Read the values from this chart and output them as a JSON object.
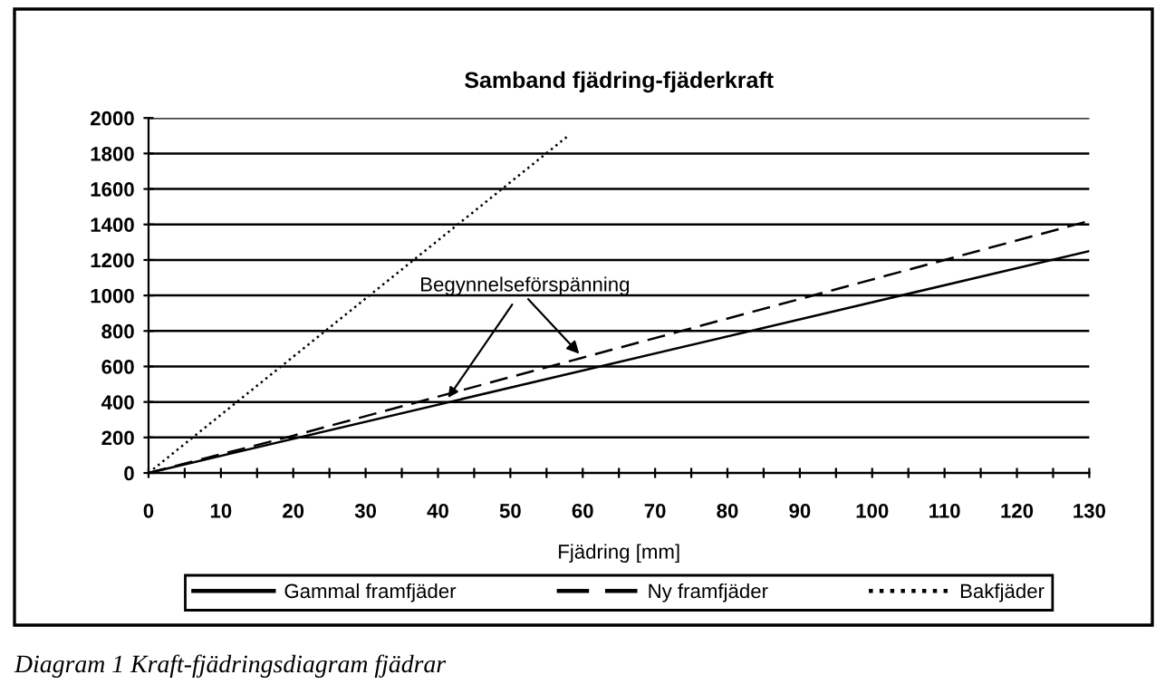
{
  "chart_data": {
    "type": "line",
    "title": "Samband fjädring-fjäderkraft",
    "xlabel": "Fjädring [mm]",
    "xlim": [
      0,
      130
    ],
    "ylim": [
      0,
      2000
    ],
    "xticks": [
      0,
      {
        "value": 5,
        "label": null
      },
      10,
      {
        "value": 15,
        "label": null
      },
      20,
      {
        "value": 25,
        "label": null
      },
      30,
      {
        "value": 35,
        "label": null
      },
      40,
      {
        "value": 45,
        "label": null
      },
      50,
      {
        "value": 55,
        "label": null
      },
      60,
      {
        "value": 65,
        "label": null
      },
      70,
      {
        "value": 75,
        "label": null
      },
      80,
      {
        "value": 85,
        "label": null
      },
      90,
      {
        "value": 95,
        "label": null
      },
      100,
      {
        "value": 105,
        "label": null
      },
      110,
      {
        "value": 115,
        "label": null
      },
      120,
      {
        "value": 125,
        "label": null
      },
      130
    ],
    "yticks": [
      0,
      200,
      400,
      600,
      800,
      1000,
      1200,
      1400,
      1600,
      1800,
      2000
    ],
    "grid": "y",
    "legend": "bottom",
    "series": [
      {
        "name": "Gammal framfjäder",
        "color": "#000000",
        "line_style": "solid",
        "x": [
          0,
          130
        ],
        "values": [
          0,
          1250
        ]
      },
      {
        "name": "Ny framfjäder",
        "color": "#000000",
        "line_style": "dashed",
        "x": [
          0,
          20,
          60,
          130
        ],
        "values": [
          0,
          210,
          650,
          1420
        ]
      },
      {
        "name": "Bakfjäder",
        "color": "#000000",
        "line_style": "dotted",
        "x": [
          0,
          58
        ],
        "values": [
          0,
          1900
        ]
      }
    ],
    "annotations": [
      {
        "text": "Begynnelseförspänning",
        "x": 41,
        "y": 400
      },
      "Diagram 1 Kraft-fjädringsdiagram fjädrar"
    ]
  }
}
